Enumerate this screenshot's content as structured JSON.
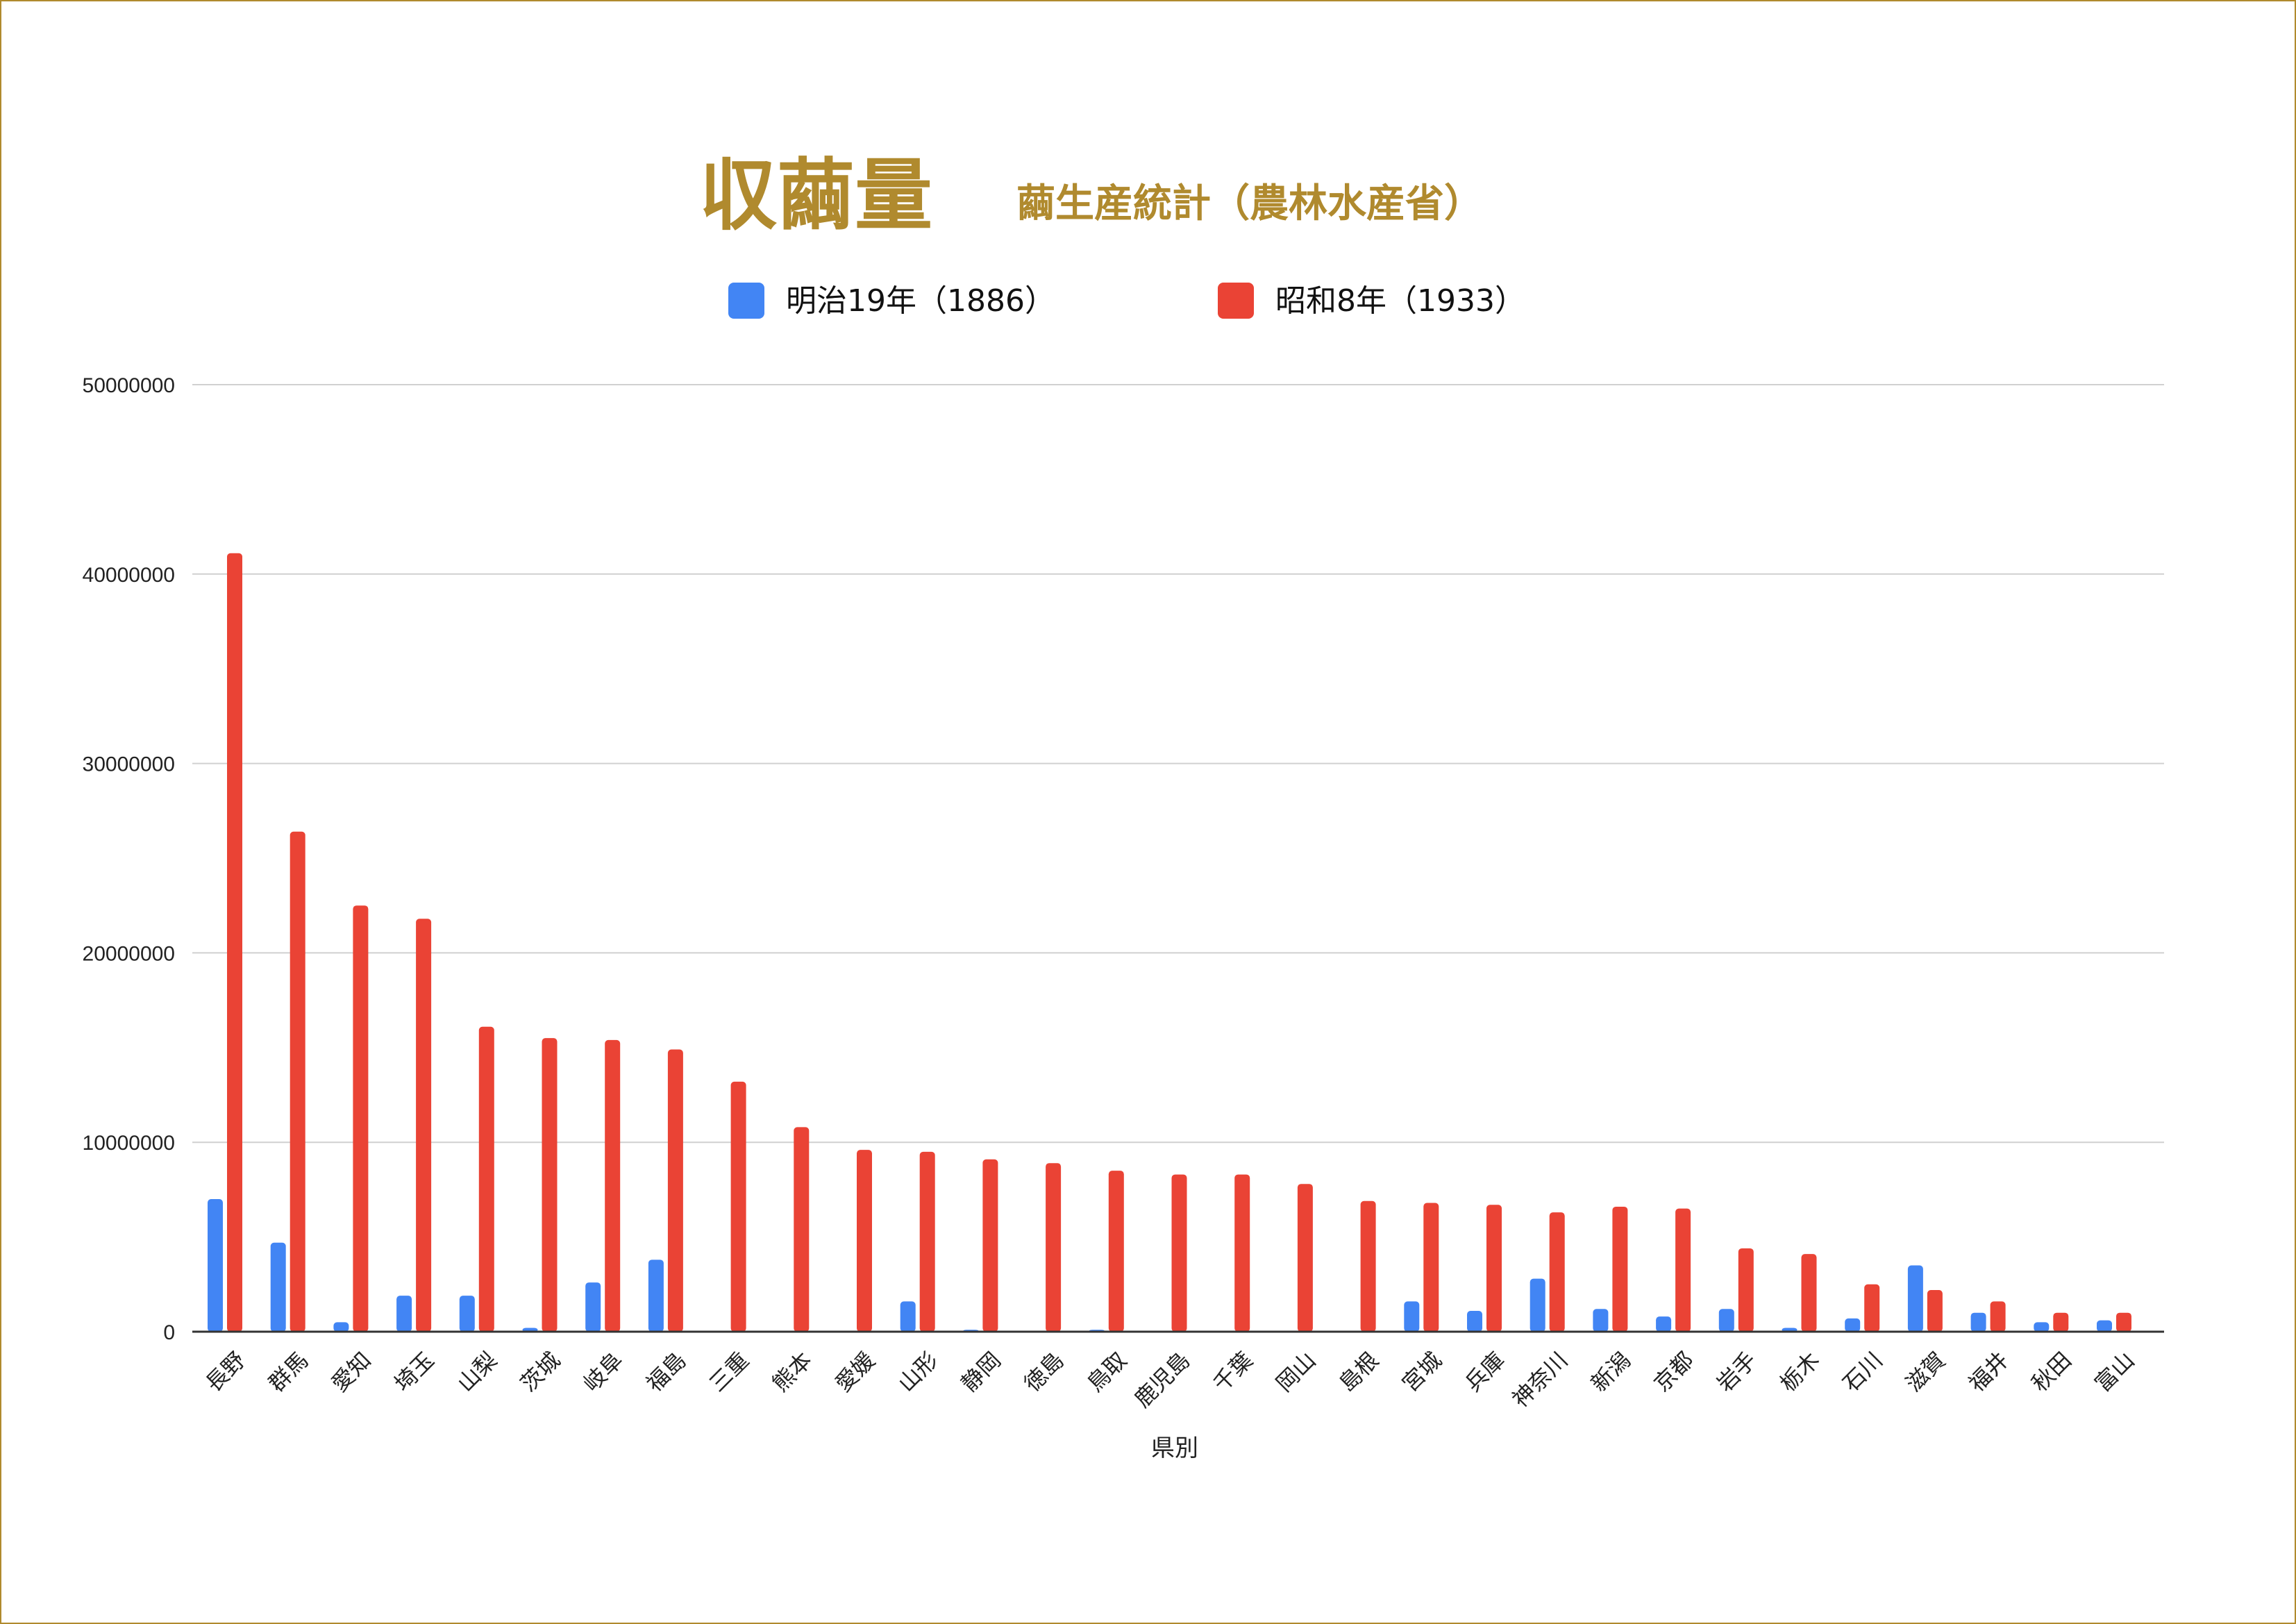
{
  "chart_data": {
    "type": "bar",
    "title": "収繭量",
    "subtitle": "繭生産統計（農林水産省）",
    "xlabel": "県別",
    "ylabel": "",
    "ylim": [
      0,
      50000000
    ],
    "yticks": [
      "0",
      "10000000",
      "20000000",
      "30000000",
      "40000000",
      "50000000"
    ],
    "grid": true,
    "legend_position": "top",
    "categories": [
      "長野",
      "群馬",
      "愛知",
      "埼玉",
      "山梨",
      "茨城",
      "岐阜",
      "福島",
      "三重",
      "熊本",
      "愛媛",
      "山形",
      "静岡",
      "徳島",
      "鳥取",
      "鹿児島",
      "千葉",
      "岡山",
      "島根",
      "宮城",
      "兵庫",
      "神奈川",
      "新潟",
      "京都",
      "岩手",
      "栃木",
      "石川",
      "滋賀",
      "福井",
      "秋田",
      "富山"
    ],
    "series": [
      {
        "name": "明治19年（1886）",
        "color": "#4285f4",
        "values": [
          7000000,
          4700000,
          500000,
          1900000,
          1900000,
          200000,
          2600000,
          3800000,
          0,
          0,
          0,
          1600000,
          100000,
          0,
          100000,
          0,
          0,
          0,
          0,
          1600000,
          1100000,
          2800000,
          1200000,
          800000,
          1200000,
          200000,
          700000,
          3500000,
          1000000,
          500000,
          600000
        ]
      },
      {
        "name": "昭和8年（1933）",
        "color": "#ea4335",
        "values": [
          41100000,
          26400000,
          22500000,
          21800000,
          16100000,
          15500000,
          15400000,
          14900000,
          13200000,
          10800000,
          9600000,
          9500000,
          9100000,
          8900000,
          8500000,
          8300000,
          8300000,
          7800000,
          6900000,
          6800000,
          6700000,
          6300000,
          6600000,
          6500000,
          4400000,
          4100000,
          2500000,
          2200000,
          1600000,
          1000000,
          1000000
        ]
      }
    ]
  }
}
